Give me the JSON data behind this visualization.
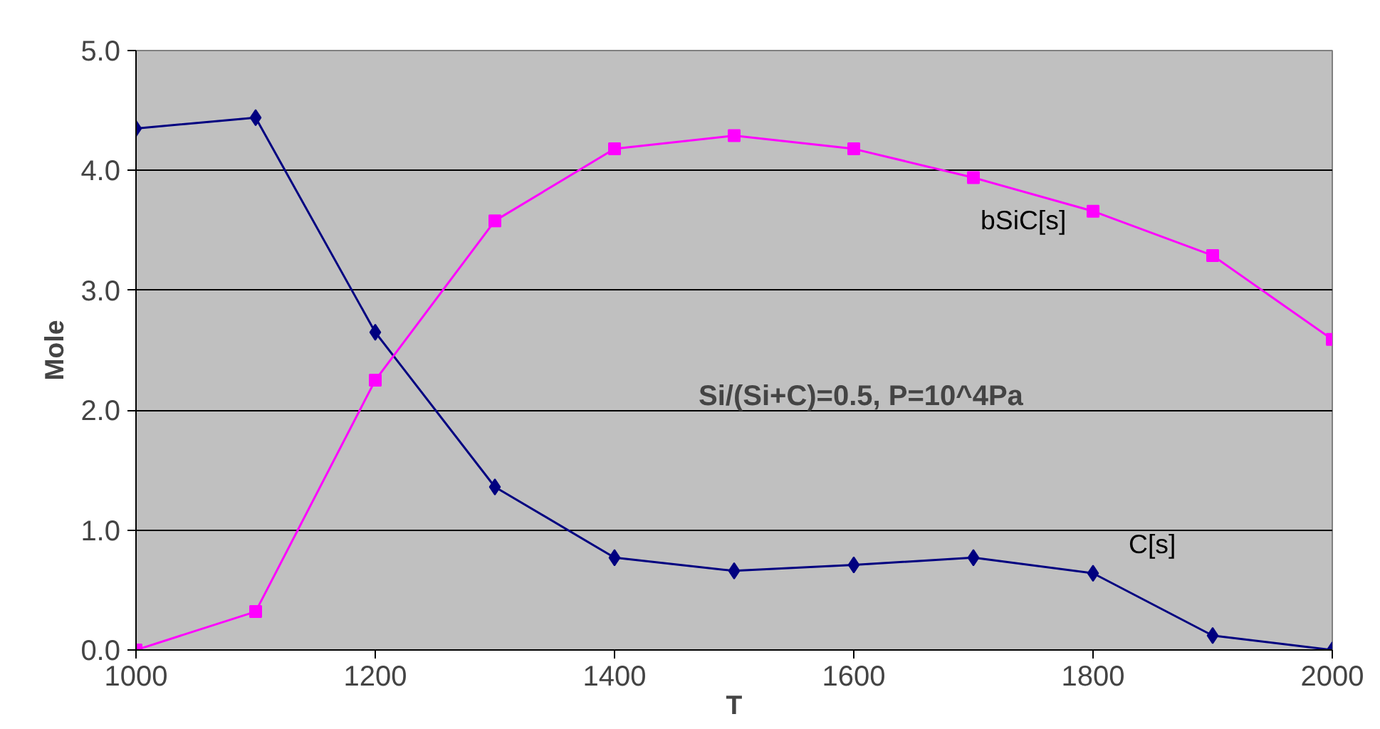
{
  "chart_data": {
    "type": "line",
    "xlabel": "T",
    "ylabel": "Mole",
    "x": [
      1000,
      1100,
      1200,
      1300,
      1400,
      1500,
      1600,
      1700,
      1800,
      1900,
      2000
    ],
    "series": [
      {
        "name": "C[s]",
        "color": "#000080",
        "marker": "diamond",
        "values": [
          4.35,
          4.44,
          2.65,
          1.36,
          0.77,
          0.66,
          0.71,
          0.77,
          0.64,
          0.12,
          0.0
        ]
      },
      {
        "name": "bSiC[s]",
        "color": "#ff00ff",
        "marker": "square",
        "values": [
          0.0,
          0.32,
          2.25,
          3.58,
          4.18,
          4.29,
          4.18,
          3.94,
          3.66,
          3.29,
          2.59
        ]
      }
    ],
    "xlim": [
      1000,
      2000
    ],
    "xticks": [
      1000,
      1200,
      1400,
      1600,
      1800,
      2000
    ],
    "ylim": [
      0,
      5
    ],
    "yticks": [
      {
        "value": 0,
        "label": "0.0"
      },
      {
        "value": 1,
        "label": "1.0"
      },
      {
        "value": 2,
        "label": "2.0"
      },
      {
        "value": 3,
        "label": "3.0"
      },
      {
        "value": 4,
        "label": "4.0"
      },
      {
        "value": 5,
        "label": "5.0"
      }
    ],
    "grid": "y",
    "line_style": "solid",
    "annotations": [
      "Si/(Si+C)=0.5, P=10^4Pa"
    ]
  }
}
